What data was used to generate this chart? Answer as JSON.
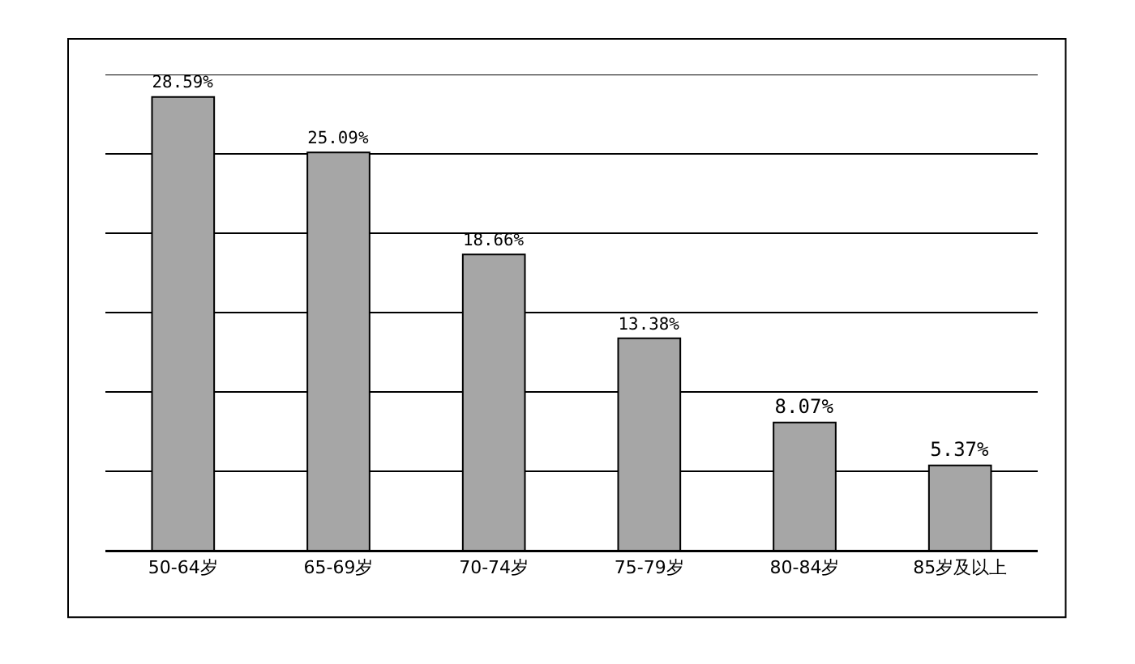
{
  "chart_data": {
    "type": "bar",
    "categories": [
      "50-64岁",
      "65-69岁",
      "70-74岁",
      "75-79岁",
      "80-84岁",
      "85岁及以上"
    ],
    "values": [
      28.59,
      25.09,
      18.66,
      13.38,
      8.07,
      5.37
    ],
    "value_labels": [
      "28.59%",
      "25.09%",
      "18.66%",
      "13.38%",
      "8.07%",
      "5.37%"
    ],
    "color": "#a6a6a6",
    "ylim": [
      0,
      30
    ],
    "yticks": [
      {
        "value": 0,
        "label": null
      },
      {
        "value": 5,
        "label": null
      },
      {
        "value": 10,
        "label": null
      },
      {
        "value": 15,
        "label": null
      },
      {
        "value": 20,
        "label": null
      },
      {
        "value": 25,
        "label": null
      },
      {
        "value": 30,
        "label": null
      }
    ],
    "tick_labels": "x",
    "grid": "y",
    "legend": false
  }
}
